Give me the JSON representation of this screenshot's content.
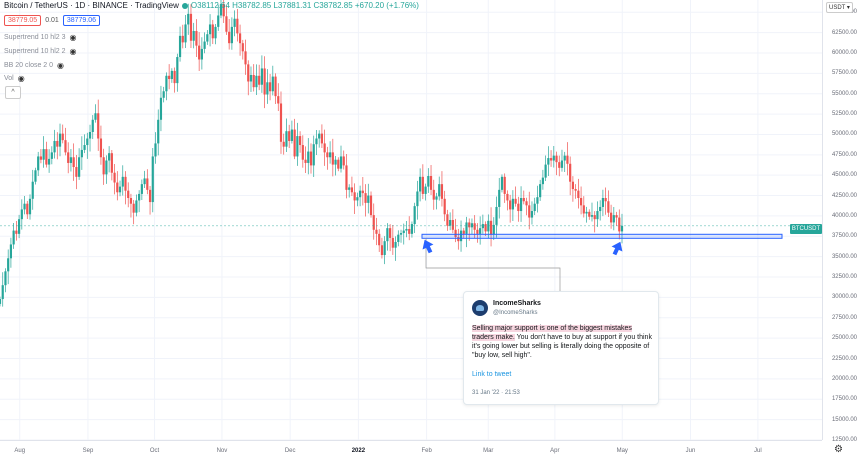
{
  "header": {
    "symbol": "Bitcoin / TetherUS · 1D · BINANCE · TradingView",
    "ohlc": "O38112.64  H38782.85  L37881.31  C38782.85  +670.20 (+1.76%)"
  },
  "price_boxes": {
    "bid": "38779.05",
    "spread": "0.01",
    "ask": "38779.06"
  },
  "indicators": [
    {
      "label": "Supertrend 10 hl2 3"
    },
    {
      "label": "Supertrend 10 hl2 2"
    },
    {
      "label": "BB 20 close 2 0"
    },
    {
      "label": "Vol"
    }
  ],
  "collapse_label": "^",
  "y_axis": {
    "currency": "USDT ▾",
    "ticks": [
      "65000.00",
      "62500.00",
      "60000.00",
      "57500.00",
      "55000.00",
      "52500.00",
      "50000.00",
      "47500.00",
      "45000.00",
      "42500.00",
      "40000.00",
      "37500.00",
      "35000.00",
      "32500.00",
      "30000.00",
      "27500.00",
      "25000.00",
      "22500.00",
      "20000.00",
      "17500.00",
      "15000.00",
      "12500.00"
    ],
    "symbol_tag": "BTCUSDT"
  },
  "x_axis": {
    "ticks": [
      {
        "label": "Aug",
        "bold": false
      },
      {
        "label": "Sep",
        "bold": false
      },
      {
        "label": "Oct",
        "bold": false
      },
      {
        "label": "Nov",
        "bold": false
      },
      {
        "label": "Dec",
        "bold": false
      },
      {
        "label": "2022",
        "bold": true
      },
      {
        "label": "Feb",
        "bold": false
      },
      {
        "label": "Mar",
        "bold": false
      },
      {
        "label": "Apr",
        "bold": false
      },
      {
        "label": "May",
        "bold": false
      },
      {
        "label": "Jun",
        "bold": false
      },
      {
        "label": "Jul",
        "bold": false
      }
    ]
  },
  "tweet": {
    "name": "IncomeSharks",
    "handle": "@IncomeSharks",
    "highlight": "Selling major support is one of the biggest mistakes traders make.",
    "rest": " You don't have to buy at support if you think it's going lower but selling is literally doing the opposite of \"buy low, sell high\".",
    "link": "Link to tweet",
    "date": "31 Jan '22 · 21:53"
  },
  "colors": {
    "up": "#26a69a",
    "down": "#ef5350",
    "support_line": "#2962ff",
    "arrow": "#2962ff"
  },
  "chart_data": {
    "type": "candlestick",
    "symbol": "BTCUSDT",
    "ylim": [
      12500,
      66500
    ],
    "support_level": 37500,
    "last_price": 38782.85,
    "months": [
      "Aug",
      "Sep",
      "Oct",
      "Nov",
      "Dec",
      "2022",
      "Feb",
      "Mar",
      "Apr",
      "May",
      "Jun",
      "Jul"
    ],
    "closes": [
      29800,
      31500,
      33200,
      34800,
      36500,
      38200,
      37800,
      39600,
      40800,
      41500,
      40200,
      42100,
      44200,
      45600,
      47300,
      46900,
      48200,
      46300,
      47000,
      47800,
      49200,
      48500,
      50100,
      49300,
      47800,
      46500,
      47200,
      46000,
      44800,
      47200,
      48100,
      48700,
      49500,
      50300,
      51800,
      52600,
      49500,
      47200,
      45100,
      46800,
      47700,
      45300,
      44100,
      42900,
      43600,
      44800,
      43100,
      42200,
      41500,
      40400,
      41900,
      42700,
      43900,
      44600,
      43200,
      41700,
      47300,
      48900,
      51800,
      54500,
      55300,
      57200,
      56800,
      57800,
      56300,
      59500,
      62100,
      61300,
      63500,
      64800,
      61500,
      62700,
      60900,
      59200,
      60500,
      61400,
      62300,
      63500,
      61800,
      63200,
      64600,
      66000,
      64500,
      62600,
      61200,
      63200,
      64200,
      62400,
      61200,
      60200,
      58600,
      56500,
      57300,
      55800,
      57200,
      56100,
      58100,
      54900,
      56400,
      55300,
      57100,
      54700,
      53800,
      49100,
      48500,
      50400,
      49200,
      50600,
      47300,
      49800,
      48700,
      46900,
      46500,
      47900,
      46200,
      48800,
      49500,
      50100,
      48900,
      47800,
      47200,
      47800,
      46300,
      46900,
      45800,
      47300,
      46200,
      43200,
      43500,
      42900,
      41900,
      42300,
      43100,
      42800,
      41600,
      42500,
      40100,
      38300,
      37800,
      36400,
      35200,
      36900,
      38500,
      37300,
      36100,
      36800,
      37700,
      37900,
      38200,
      38400,
      37800,
      39000,
      41200,
      43000,
      44800,
      42700,
      43600,
      44900,
      43200,
      42000,
      42400,
      43900,
      42100,
      40200,
      38800,
      39500,
      38300,
      37400,
      36900,
      38200,
      37800,
      39200,
      38600,
      39100,
      38300,
      37800,
      38500,
      39000,
      38100,
      39400,
      37700,
      38900,
      41100,
      43200,
      44800,
      42700,
      41900,
      40800,
      42100,
      41500,
      40600,
      42200,
      41800,
      41300,
      39800,
      40600,
      41500,
      42300,
      43900,
      44700,
      46300,
      47100,
      46800,
      47400,
      46600,
      45900,
      46800,
      47400,
      46400,
      44200,
      43300,
      43100,
      42200,
      41300,
      40300,
      40500,
      39900,
      40100,
      39600,
      40600,
      41100,
      42200,
      41800,
      40400,
      39200,
      40100,
      39800,
      38100,
      38782
    ]
  }
}
